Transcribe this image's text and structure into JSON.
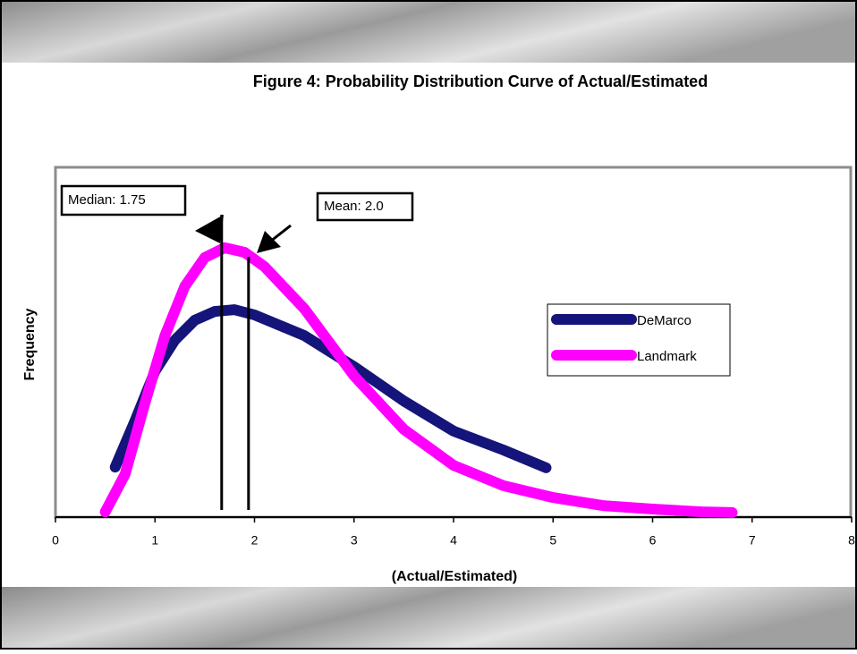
{
  "chart_data": {
    "type": "line",
    "title": "Figure 4:  Probability Distribution Curve of Actual/Estimated",
    "x_label": "(Actual/Estimated)",
    "y_label": "Frequency",
    "xlim": [
      0,
      8
    ],
    "xticks": [
      0,
      1,
      2,
      3,
      4,
      5,
      6,
      7,
      8
    ],
    "ylim": [
      0,
      100
    ],
    "legend": "right",
    "series": [
      {
        "name": "DeMarco",
        "color": "#14147a",
        "x": [
          0.6,
          0.8,
          1.0,
          1.2,
          1.4,
          1.6,
          1.8,
          2.0,
          2.5,
          3.0,
          3.5,
          4.0,
          4.5,
          4.93
        ],
        "values": [
          14.3,
          27.6,
          41.7,
          50.6,
          56.3,
          58.8,
          59.3,
          57.8,
          51.9,
          43.0,
          33.2,
          24.6,
          19.2,
          14.1
        ]
      },
      {
        "name": "Landmark",
        "color": "#ff00ff",
        "x": [
          0.5,
          0.7,
          0.9,
          1.1,
          1.3,
          1.5,
          1.7,
          1.9,
          2.1,
          2.5,
          3.0,
          3.5,
          4.0,
          4.5,
          5.0,
          5.5,
          6.0,
          6.5,
          6.8
        ],
        "values": [
          1.5,
          12.3,
          32.7,
          51.9,
          66.0,
          74.2,
          77.0,
          75.7,
          71.6,
          59.6,
          40.4,
          25.1,
          14.8,
          9.0,
          5.6,
          3.3,
          2.3,
          1.5,
          1.3
        ]
      }
    ],
    "annotations": [
      {
        "label": "Median: 1.75",
        "x": 1.67
      },
      {
        "label": "Mean: 2.0",
        "x": 1.94
      }
    ]
  }
}
